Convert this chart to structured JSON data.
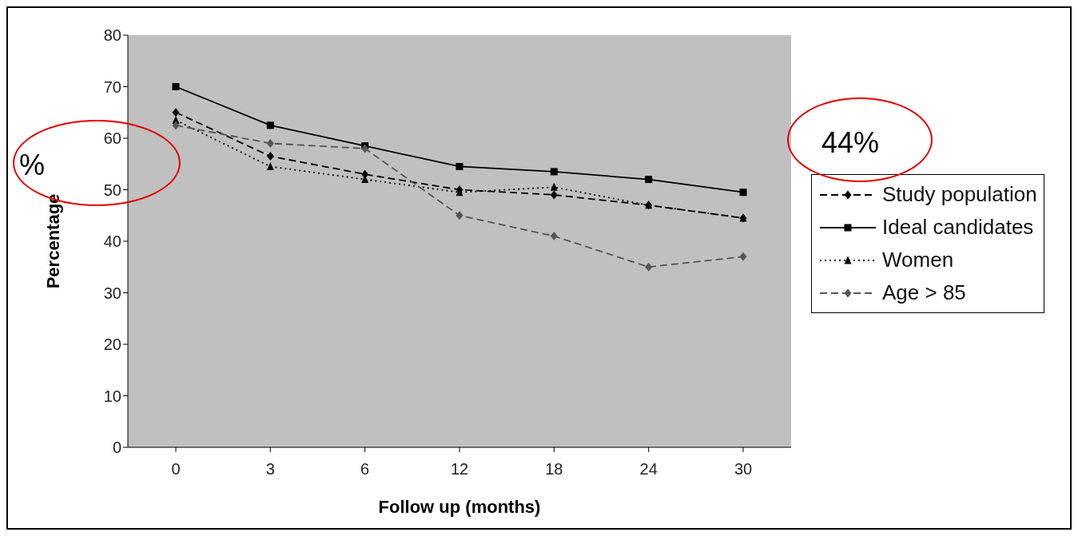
{
  "chart_data": {
    "type": "line",
    "xlabel": "Follow up (months)",
    "ylabel": "Percentage",
    "categories": [
      "0",
      "3",
      "6",
      "12",
      "18",
      "24",
      "30"
    ],
    "ylim": [
      0,
      80
    ],
    "yticks": [
      0,
      10,
      20,
      30,
      40,
      50,
      60,
      70,
      80
    ],
    "legend": "right",
    "annotations": [
      "%",
      "44%"
    ],
    "series": [
      {
        "name": "Study population",
        "color": "#000000",
        "marker": "diamond",
        "line_style": "dashed",
        "values": [
          65,
          56.5,
          53,
          50,
          49,
          47,
          44.5
        ]
      },
      {
        "name": "Ideal candidates",
        "color": "#000000",
        "marker": "square",
        "line_style": "solid",
        "values": [
          70,
          62.5,
          58.5,
          54.5,
          53.5,
          52,
          49.5
        ]
      },
      {
        "name": "Women",
        "color": "#000000",
        "marker": "triangle",
        "line_style": "dotted",
        "values": [
          63.5,
          54.5,
          52,
          49.5,
          50.5,
          47,
          44.5
        ]
      },
      {
        "name": "Age > 85",
        "color": "#555555",
        "marker": "diamond",
        "line_style": "dashed",
        "values": [
          62.5,
          59,
          58,
          45,
          41,
          35,
          37
        ]
      }
    ]
  }
}
